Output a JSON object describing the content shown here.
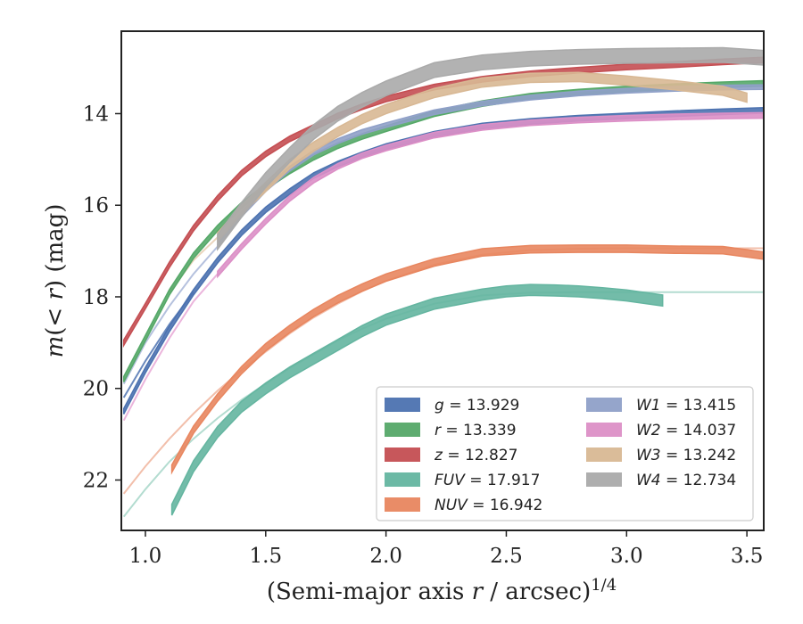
{
  "chart_data": {
    "type": "line",
    "title": "",
    "xlabel_prefix": "(Semi-major axis ",
    "xlabel_var": "r",
    "xlabel_mid": " / arcsec)",
    "xlabel_sup": "1/4",
    "ylabel_prefix": "m",
    "ylabel_paren_open": "(< ",
    "ylabel_var": "r",
    "ylabel_suffix": ") (mag)",
    "xlim": [
      0.9,
      3.57
    ],
    "ylim": [
      23.1,
      12.2
    ],
    "y_inverted": true,
    "xticks": [
      1.0,
      1.5,
      2.0,
      2.5,
      3.0,
      3.5
    ],
    "xtick_labels": [
      "1.0",
      "1.5",
      "2.0",
      "2.5",
      "3.0",
      "3.5"
    ],
    "yticks": [
      14,
      16,
      18,
      20,
      22
    ],
    "ytick_labels": [
      "14",
      "16",
      "18",
      "20",
      "22"
    ],
    "grid": false,
    "legend_position": "lower-right",
    "series": [
      {
        "name": "g",
        "legend_value": "13.929",
        "color": "#4c72b0",
        "band": 0.06,
        "x": [
          0.91,
          1.0,
          1.1,
          1.2,
          1.3,
          1.4,
          1.5,
          1.6,
          1.7,
          1.8,
          1.9,
          2.0,
          2.2,
          2.4,
          2.6,
          2.8,
          3.0,
          3.2,
          3.4,
          3.57
        ],
        "y": [
          20.5,
          19.6,
          18.7,
          17.9,
          17.2,
          16.6,
          16.1,
          15.7,
          15.35,
          15.1,
          14.9,
          14.72,
          14.45,
          14.27,
          14.17,
          14.1,
          14.05,
          14.0,
          13.96,
          13.93
        ]
      },
      {
        "name": "r",
        "legend_value": "13.339",
        "color": "#55a868",
        "band": 0.06,
        "x": [
          0.91,
          1.0,
          1.1,
          1.2,
          1.3,
          1.4,
          1.5,
          1.6,
          1.7,
          1.8,
          1.9,
          2.0,
          2.2,
          2.4,
          2.6,
          2.8,
          3.0,
          3.2,
          3.4,
          3.57
        ],
        "y": [
          19.8,
          18.9,
          17.9,
          17.1,
          16.5,
          16.0,
          15.6,
          15.25,
          14.95,
          14.7,
          14.5,
          14.33,
          14.0,
          13.78,
          13.62,
          13.53,
          13.46,
          13.41,
          13.37,
          13.34
        ]
      },
      {
        "name": "z",
        "legend_value": "12.827",
        "color": "#c44e52",
        "band": 0.06,
        "x": [
          0.91,
          1.0,
          1.1,
          1.2,
          1.3,
          1.4,
          1.5,
          1.6,
          1.7,
          1.8,
          1.9,
          2.0,
          2.2,
          2.4,
          2.6,
          2.8,
          3.0,
          3.2,
          3.4,
          3.57
        ],
        "y": [
          19.0,
          18.2,
          17.3,
          16.5,
          15.85,
          15.3,
          14.88,
          14.55,
          14.3,
          14.05,
          13.85,
          13.68,
          13.42,
          13.25,
          13.13,
          13.05,
          12.98,
          12.93,
          12.87,
          12.83
        ]
      },
      {
        "name": "FUV",
        "legend_value": "17.917",
        "color": "#64b5a0",
        "band": 0.12,
        "x": [
          1.11,
          1.2,
          1.3,
          1.4,
          1.5,
          1.6,
          1.7,
          1.8,
          1.9,
          2.0,
          2.2,
          2.4,
          2.5,
          2.6,
          2.7,
          2.8,
          2.9,
          3.0,
          3.15
        ],
        "y": [
          22.65,
          21.7,
          20.95,
          20.4,
          20.0,
          19.65,
          19.35,
          19.05,
          18.75,
          18.5,
          18.15,
          17.95,
          17.88,
          17.85,
          17.86,
          17.88,
          17.92,
          17.97,
          18.08
        ]
      },
      {
        "name": "NUV",
        "legend_value": "16.942",
        "color": "#e8865f",
        "band": 0.08,
        "x": [
          1.11,
          1.2,
          1.3,
          1.4,
          1.5,
          1.6,
          1.7,
          1.8,
          1.9,
          2.0,
          2.2,
          2.4,
          2.6,
          2.8,
          3.0,
          3.2,
          3.4,
          3.57
        ],
        "y": [
          21.75,
          20.9,
          20.2,
          19.6,
          19.1,
          18.7,
          18.35,
          18.05,
          17.8,
          17.58,
          17.25,
          17.03,
          16.96,
          16.95,
          16.95,
          16.97,
          16.98,
          17.1
        ]
      },
      {
        "name": "W1",
        "legend_value": "13.415",
        "color": "#8fa0c8",
        "band": 0.05,
        "x": [
          1.3,
          1.4,
          1.5,
          1.6,
          1.7,
          1.8,
          1.9,
          2.0,
          2.2,
          2.4,
          2.6,
          2.8,
          3.0,
          3.2,
          3.4,
          3.57
        ],
        "y": [
          16.9,
          16.2,
          15.65,
          15.2,
          14.85,
          14.6,
          14.4,
          14.25,
          13.97,
          13.78,
          13.65,
          13.56,
          13.5,
          13.46,
          13.43,
          13.42
        ]
      },
      {
        "name": "W2",
        "legend_value": "14.037",
        "color": "#dc8fc6",
        "band": 0.06,
        "x": [
          1.3,
          1.4,
          1.5,
          1.6,
          1.7,
          1.8,
          1.9,
          2.0,
          2.2,
          2.4,
          2.6,
          2.8,
          3.0,
          3.2,
          3.4,
          3.57
        ],
        "y": [
          17.5,
          16.9,
          16.35,
          15.85,
          15.45,
          15.15,
          14.92,
          14.75,
          14.47,
          14.3,
          14.2,
          14.14,
          14.1,
          14.07,
          14.05,
          14.04
        ]
      },
      {
        "name": "W3",
        "legend_value": "13.242",
        "color": "#d8b894",
        "band": 0.1,
        "x": [
          1.3,
          1.4,
          1.5,
          1.6,
          1.7,
          1.8,
          1.9,
          2.0,
          2.2,
          2.4,
          2.6,
          2.8,
          3.0,
          3.2,
          3.4,
          3.5
        ],
        "y": [
          16.7,
          16.1,
          15.6,
          15.1,
          14.72,
          14.4,
          14.12,
          13.9,
          13.55,
          13.32,
          13.22,
          13.2,
          13.28,
          13.38,
          13.5,
          13.65
        ]
      },
      {
        "name": "W4",
        "legend_value": "12.734",
        "color": "#aaaaaa",
        "band": 0.16,
        "x": [
          1.3,
          1.4,
          1.5,
          1.6,
          1.7,
          1.8,
          1.9,
          2.0,
          2.2,
          2.4,
          2.6,
          2.8,
          3.0,
          3.2,
          3.4,
          3.57
        ],
        "y": [
          16.8,
          16.1,
          15.45,
          14.9,
          14.4,
          14.0,
          13.7,
          13.45,
          13.05,
          12.88,
          12.8,
          12.76,
          12.74,
          12.73,
          12.72,
          12.78
        ]
      }
    ],
    "extension_lines": [
      {
        "name": "g",
        "color": "#4c72b0",
        "x": [
          0.91,
          1.0,
          1.1,
          1.2
        ],
        "y": [
          20.2,
          19.4,
          18.6,
          17.9
        ]
      },
      {
        "name": "W2",
        "color": "#e8a8d6",
        "x": [
          0.91,
          1.0,
          1.1,
          1.2,
          1.3
        ],
        "y": [
          20.7,
          19.8,
          18.9,
          18.1,
          17.5
        ]
      },
      {
        "name": "W1",
        "color": "#a8b6d8",
        "x": [
          0.91,
          1.0,
          1.1,
          1.2,
          1.3
        ],
        "y": [
          19.9,
          19.0,
          18.2,
          17.5,
          16.9
        ]
      },
      {
        "name": "W3",
        "color": "#e6cdb0",
        "x": [
          1.1,
          1.2,
          1.3
        ],
        "y": [
          17.9,
          17.2,
          16.7
        ]
      },
      {
        "name": "FUV",
        "color": "#a6d6c8",
        "x": [
          0.91,
          1.0,
          1.1,
          1.2,
          1.3,
          1.4,
          1.5,
          1.6,
          1.7,
          1.8,
          1.9,
          2.0,
          2.2,
          2.4,
          2.6,
          2.8,
          3.0,
          3.2,
          3.4,
          3.57
        ],
        "y": [
          22.8,
          22.2,
          21.6,
          21.1,
          20.65,
          20.25,
          19.9,
          19.55,
          19.25,
          18.95,
          18.7,
          18.48,
          18.15,
          17.97,
          17.91,
          17.9,
          17.9,
          17.9,
          17.9,
          17.9
        ]
      },
      {
        "name": "NUV",
        "color": "#f0b49c",
        "x": [
          0.91,
          1.0,
          1.1,
          1.2,
          1.3,
          1.4,
          1.5,
          1.6,
          1.7,
          1.8,
          1.9,
          2.0,
          2.2,
          2.4,
          2.6,
          2.8,
          3.0,
          3.2,
          3.4,
          3.57
        ],
        "y": [
          22.3,
          21.7,
          21.1,
          20.55,
          20.05,
          19.6,
          19.2,
          18.8,
          18.45,
          18.15,
          17.88,
          17.65,
          17.3,
          17.08,
          16.98,
          16.95,
          16.94,
          16.94,
          16.94,
          16.94
        ]
      }
    ]
  }
}
